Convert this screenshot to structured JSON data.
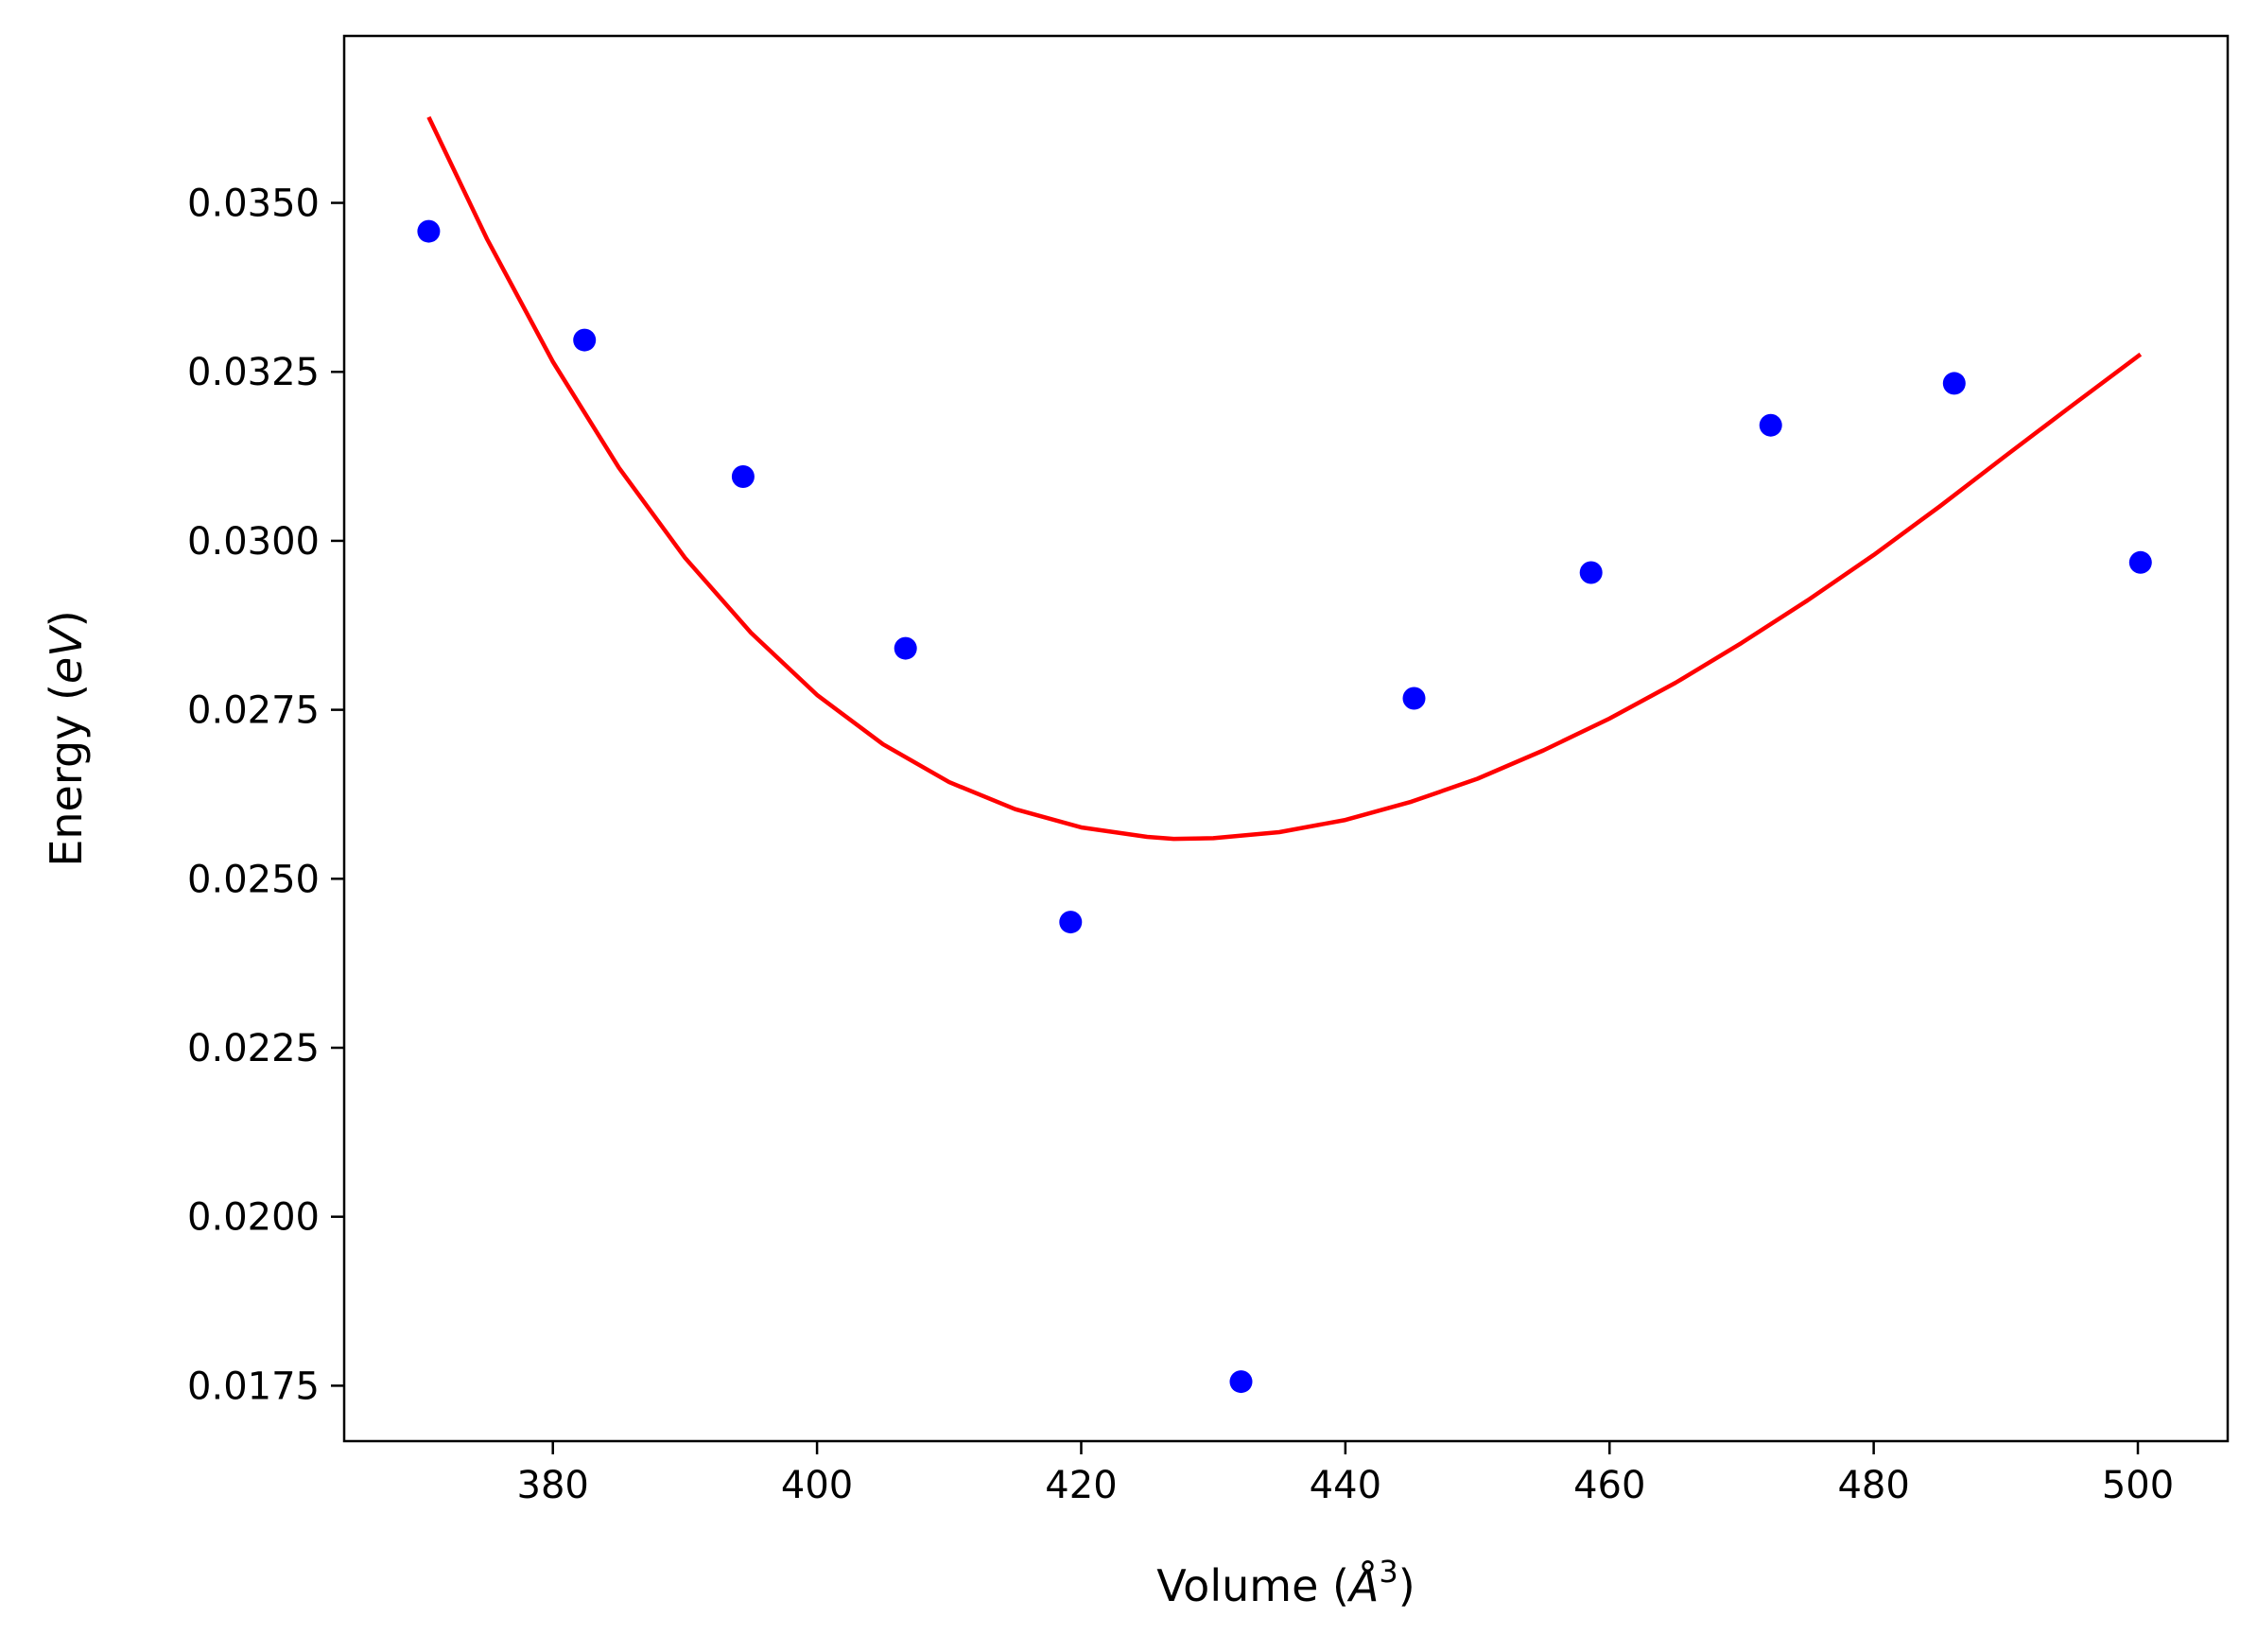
{
  "chart_data": {
    "type": "scatter",
    "title": "",
    "xlabel": "Volume (Å³)",
    "ylabel": "Energy (eV)",
    "xlabel_parts": {
      "prefix": "Volume (",
      "symbol": "Å",
      "sup": "3",
      "suffix": ")"
    },
    "ylabel_parts": {
      "prefix": "Energy (",
      "italic": "eV",
      "suffix": ")"
    },
    "xlim": [
      364.2,
      506.8
    ],
    "ylim": [
      0.01668,
      0.03747
    ],
    "xticks": [
      380,
      400,
      420,
      440,
      460,
      480,
      500
    ],
    "xtick_labels": [
      "380",
      "400",
      "420",
      "440",
      "460",
      "480",
      "500"
    ],
    "yticks": [
      0.0175,
      0.02,
      0.0225,
      0.025,
      0.0275,
      0.03,
      0.0325,
      0.035
    ],
    "ytick_labels": [
      "0.0175",
      "0.0200",
      "0.0225",
      "0.0250",
      "0.0275",
      "0.0300",
      "0.0325",
      "0.0350"
    ],
    "grid": false,
    "series": [
      {
        "kind": "scatter",
        "color": "#0000ff",
        "x": [
          370.6,
          382.4,
          394.4,
          406.7,
          419.2,
          432.1,
          445.2,
          458.6,
          472.2,
          486.1,
          500.2
        ],
        "y": [
          0.03458,
          0.03297,
          0.03095,
          0.02841,
          0.02436,
          0.01756,
          0.02767,
          0.02953,
          0.03171,
          0.03233,
          0.02968
        ]
      },
      {
        "kind": "line",
        "color": "#ff0000",
        "x": [
          370.6,
          375,
          380,
          385,
          390,
          395,
          400,
          405,
          410,
          415,
          420,
          425,
          427,
          430,
          435,
          440,
          445,
          450,
          455,
          460,
          465,
          470,
          475,
          480,
          485,
          490,
          495,
          500.2
        ],
        "y": [
          0.03627,
          0.03447,
          0.03265,
          0.03108,
          0.02975,
          0.02864,
          0.02772,
          0.02699,
          0.02643,
          0.02603,
          0.02576,
          0.02562,
          0.02559,
          0.0256,
          0.02569,
          0.02587,
          0.02614,
          0.02648,
          0.0269,
          0.02737,
          0.0279,
          0.02849,
          0.02912,
          0.02979,
          0.03051,
          0.03126,
          0.032,
          0.03276
        ]
      }
    ]
  }
}
